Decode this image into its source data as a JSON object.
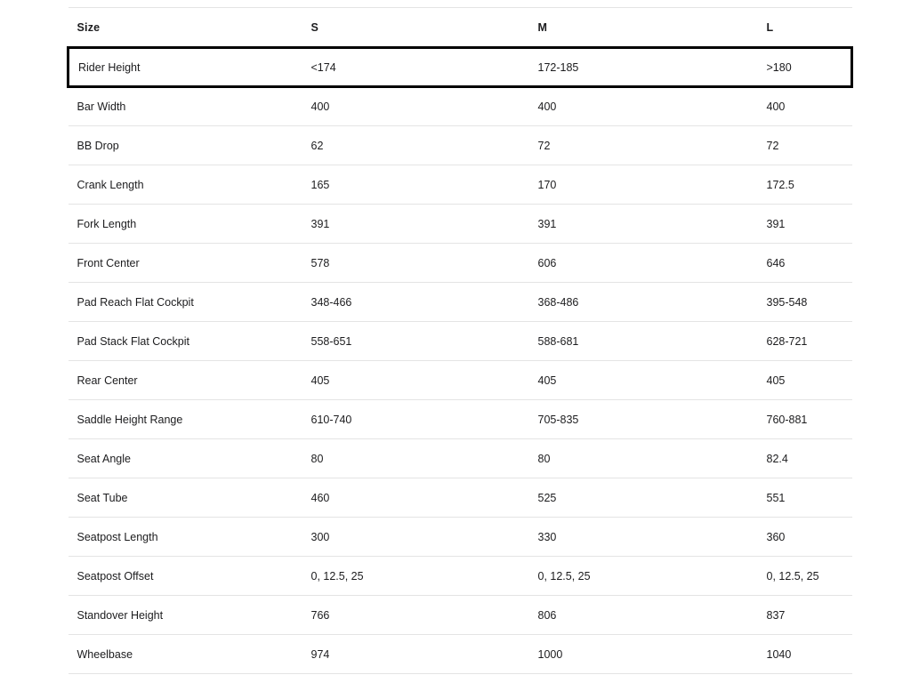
{
  "table": {
    "columns": [
      "Size",
      "S",
      "M",
      "L"
    ],
    "highlight_color": "#000000",
    "rows": [
      {
        "label": "Rider Height",
        "values": [
          "<174",
          "172-185",
          ">180"
        ],
        "highlighted": true
      },
      {
        "label": "Bar Width",
        "values": [
          "400",
          "400",
          "400"
        ],
        "highlighted": false
      },
      {
        "label": "BB Drop",
        "values": [
          "62",
          "72",
          "72"
        ],
        "highlighted": false
      },
      {
        "label": "Crank Length",
        "values": [
          "165",
          "170",
          "172.5"
        ],
        "highlighted": false
      },
      {
        "label": "Fork Length",
        "values": [
          "391",
          "391",
          "391"
        ],
        "highlighted": false
      },
      {
        "label": "Front Center",
        "values": [
          "578",
          "606",
          "646"
        ],
        "highlighted": false
      },
      {
        "label": "Pad Reach Flat Cockpit",
        "values": [
          "348-466",
          "368-486",
          "395-548"
        ],
        "highlighted": false
      },
      {
        "label": "Pad Stack Flat Cockpit",
        "values": [
          "558-651",
          "588-681",
          "628-721"
        ],
        "highlighted": false
      },
      {
        "label": "Rear Center",
        "values": [
          "405",
          "405",
          "405"
        ],
        "highlighted": false
      },
      {
        "label": "Saddle Height Range",
        "values": [
          "610-740",
          "705-835",
          "760-881"
        ],
        "highlighted": false
      },
      {
        "label": "Seat Angle",
        "values": [
          "80",
          "80",
          "82.4"
        ],
        "highlighted": false
      },
      {
        "label": "Seat Tube",
        "values": [
          "460",
          "525",
          "551"
        ],
        "highlighted": false
      },
      {
        "label": "Seatpost Length",
        "values": [
          "300",
          "330",
          "360"
        ],
        "highlighted": false
      },
      {
        "label": "Seatpost Offset",
        "values": [
          "0, 12.5, 25",
          "0, 12.5, 25",
          "0, 12.5, 25"
        ],
        "highlighted": false
      },
      {
        "label": "Standover Height",
        "values": [
          "766",
          "806",
          "837"
        ],
        "highlighted": false
      },
      {
        "label": "Wheelbase",
        "values": [
          "974",
          "1000",
          "1040"
        ],
        "highlighted": false
      }
    ]
  }
}
